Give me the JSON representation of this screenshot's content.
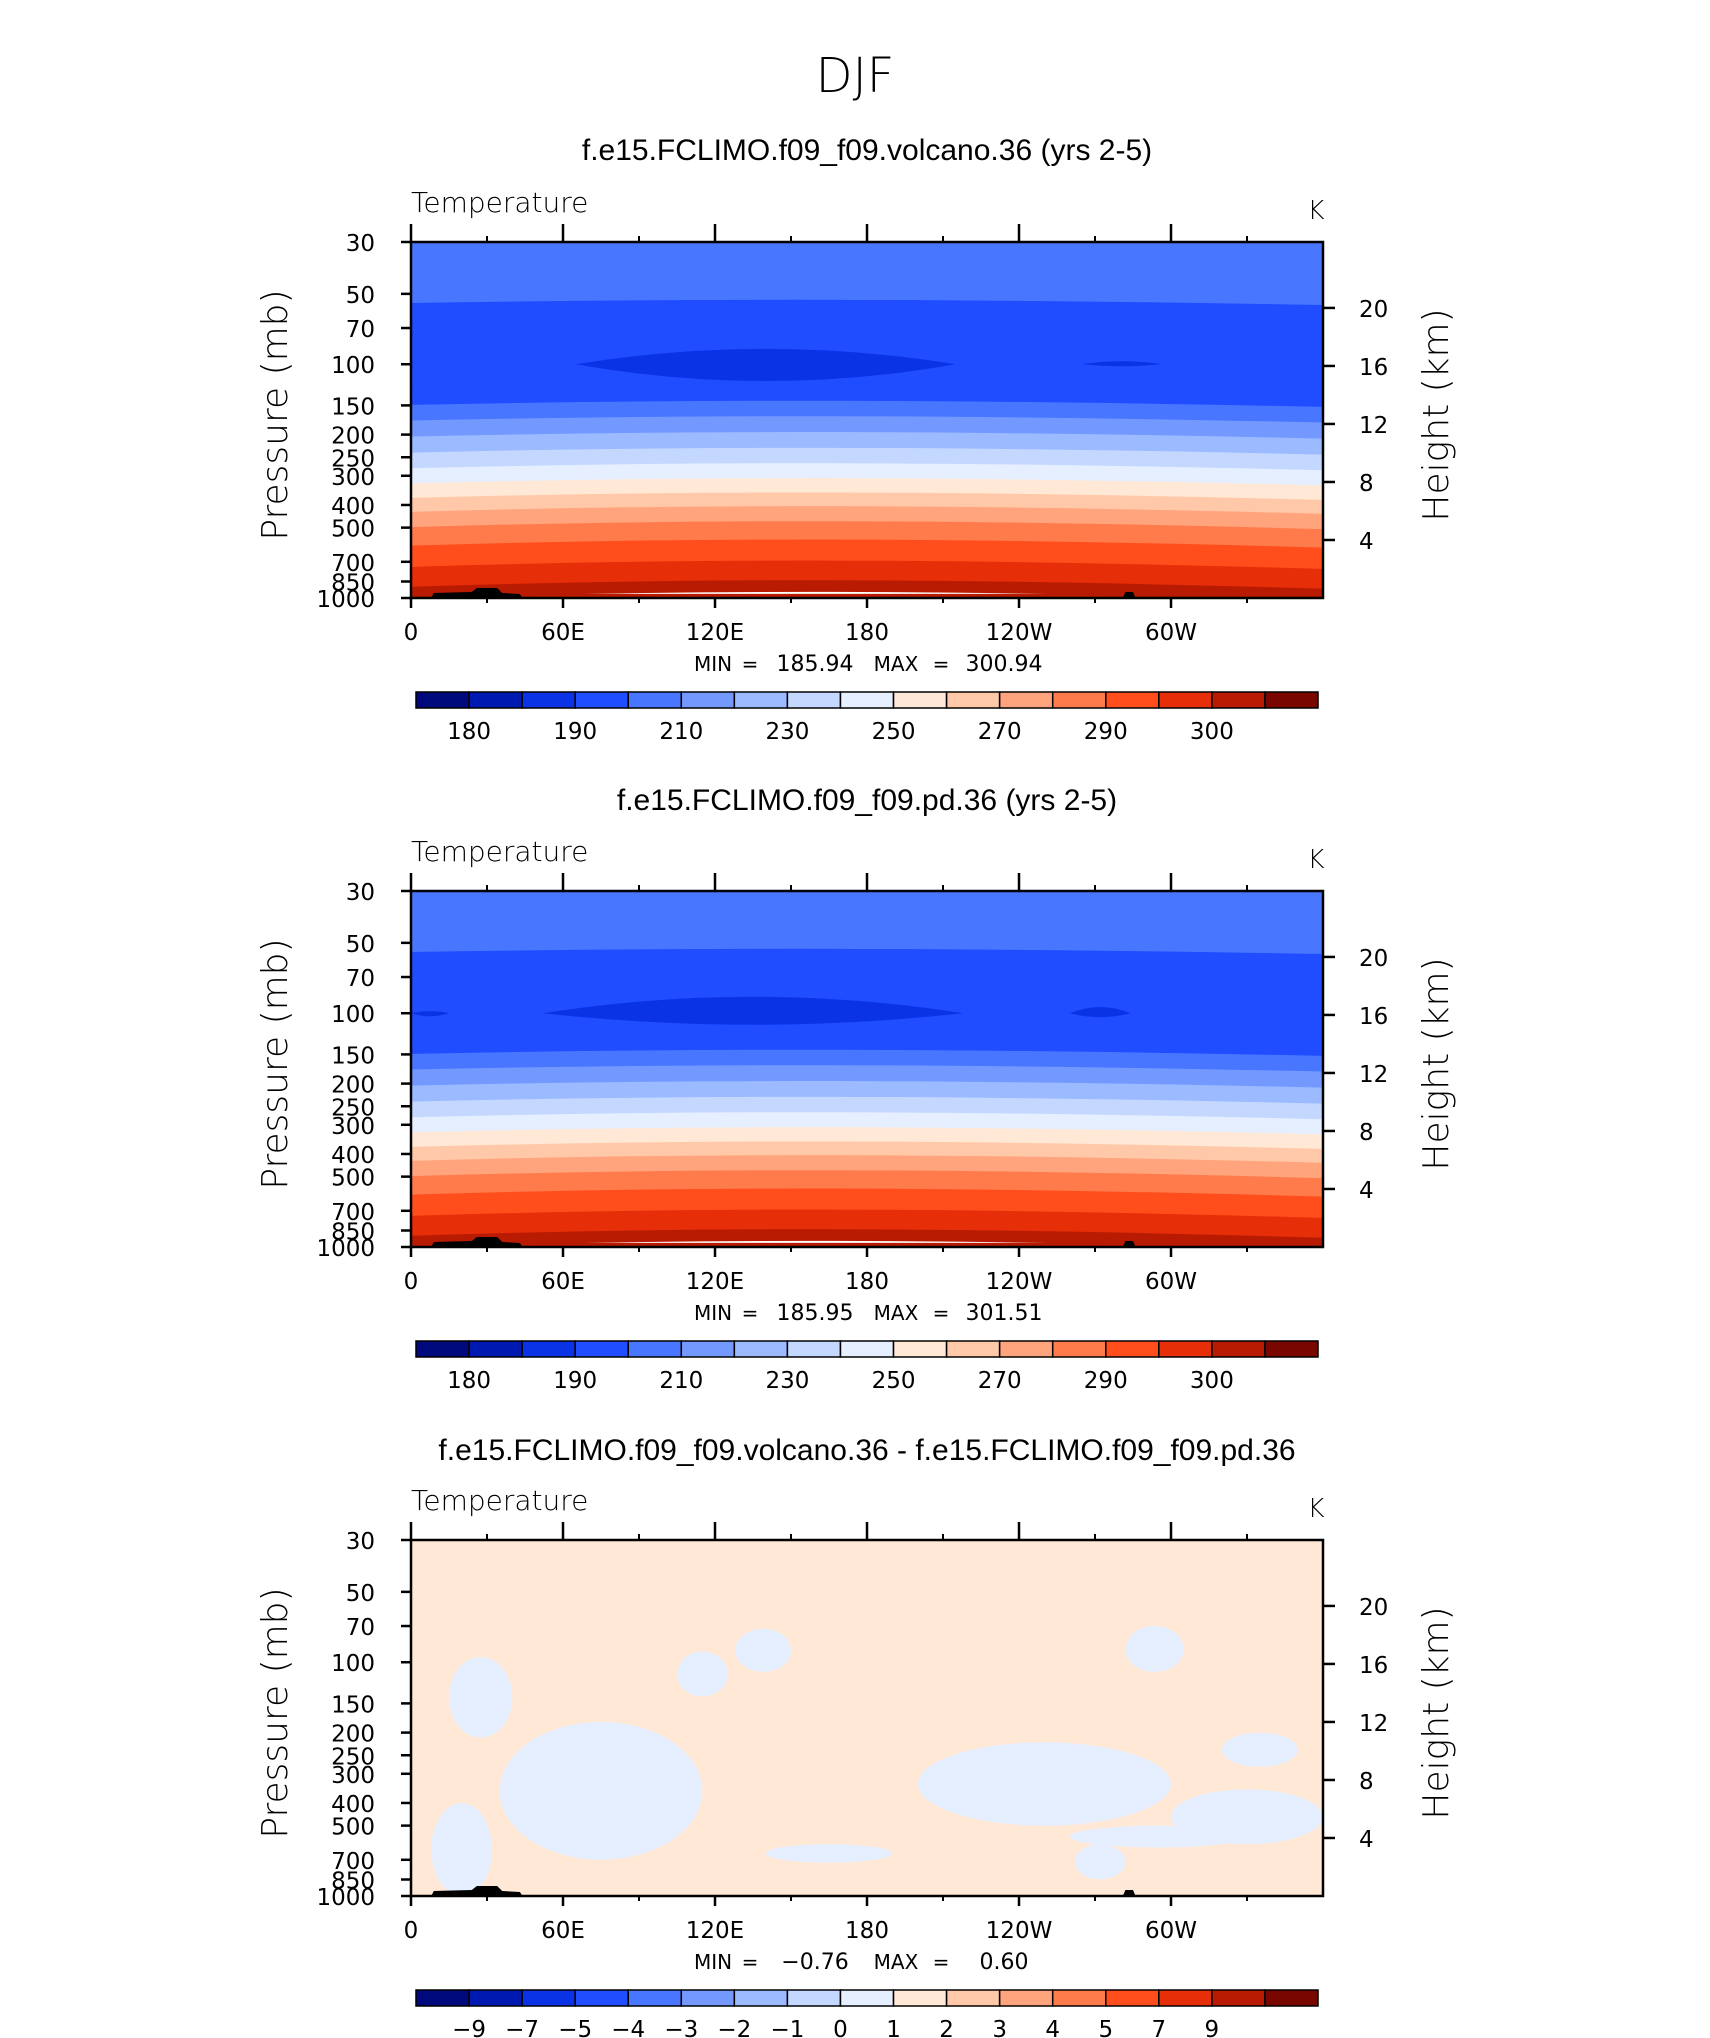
{
  "page_title": "DJF",
  "chart_data": [
    {
      "type": "heatmap",
      "title": "f.e15.FCLIMO.f09_f09.volcano.36 (yrs 2-5)",
      "variable_label": "Temperature",
      "units": "K",
      "ylabel": "Pressure (mb)",
      "y2label": "Height (km)",
      "x_ticks": [
        "0",
        "60E",
        "120E",
        "180",
        "120W",
        "60W"
      ],
      "y_ticks": [
        "30",
        "50",
        "70",
        "100",
        "150",
        "200",
        "250",
        "300",
        "400",
        "500",
        "700",
        "850",
        "1000"
      ],
      "y2_ticks": [
        "20",
        "16",
        "12",
        "8",
        "4"
      ],
      "stats": {
        "min_label": "MIN",
        "min": "185.94",
        "max_label": "MAX",
        "max": "300.94"
      },
      "colorbar_labels": [
        "180",
        "190",
        "210",
        "230",
        "250",
        "270",
        "290",
        "300"
      ],
      "colorbar_colors": [
        "#000a7c",
        "#0019b0",
        "#0b33e6",
        "#1f4dff",
        "#4876ff",
        "#7399ff",
        "#9cbaff",
        "#c4d8ff",
        "#e6efff",
        "#ffe8d6",
        "#ffc9a9",
        "#ffa47c",
        "#ff7b4c",
        "#ff4e1c",
        "#e62e08",
        "#b81b02",
        "#7a0600"
      ],
      "layers": [
        {
          "p": 30,
          "level": 4
        },
        {
          "p": 40,
          "level": 4
        },
        {
          "p": 55,
          "level": 3
        },
        {
          "p": 75,
          "level": 3
        },
        {
          "p": 100,
          "level": 3
        },
        {
          "p": 125,
          "level": 3
        },
        {
          "p": 150,
          "level": 4
        },
        {
          "p": 175,
          "level": 5
        },
        {
          "p": 205,
          "level": 6
        },
        {
          "p": 240,
          "level": 7
        },
        {
          "p": 280,
          "level": 8
        },
        {
          "p": 325,
          "level": 9
        },
        {
          "p": 375,
          "level": 10
        },
        {
          "p": 430,
          "level": 11
        },
        {
          "p": 500,
          "level": 12
        },
        {
          "p": 600,
          "level": 13
        },
        {
          "p": 740,
          "level": 14
        },
        {
          "p": 900,
          "level": 15
        },
        {
          "p": 1000,
          "level": 15
        }
      ],
      "features": [
        {
          "kind": "min_lens",
          "level": 2,
          "lon": [
            65,
            215
          ],
          "p_peak": 86,
          "p_bottom": 118
        },
        {
          "kind": "min_lens",
          "level": 2,
          "lon": [
            265,
            296
          ],
          "p_peak": 97,
          "p_bottom": 102
        }
      ]
    },
    {
      "type": "heatmap",
      "title": "f.e15.FCLIMO.f09_f09.pd.36 (yrs 2-5)",
      "variable_label": "Temperature",
      "units": "K",
      "ylabel": "Pressure (mb)",
      "y2label": "Height (km)",
      "x_ticks": [
        "0",
        "60E",
        "120E",
        "180",
        "120W",
        "60W"
      ],
      "y_ticks": [
        "30",
        "50",
        "70",
        "100",
        "150",
        "200",
        "250",
        "300",
        "400",
        "500",
        "700",
        "850",
        "1000"
      ],
      "y2_ticks": [
        "20",
        "16",
        "12",
        "8",
        "4"
      ],
      "stats": {
        "min_label": "MIN",
        "min": "185.95",
        "max_label": "MAX",
        "max": "301.51"
      },
      "colorbar_labels": [
        "180",
        "190",
        "210",
        "230",
        "250",
        "270",
        "290",
        "300"
      ],
      "colorbar_colors": [
        "#000a7c",
        "#0019b0",
        "#0b33e6",
        "#1f4dff",
        "#4876ff",
        "#7399ff",
        "#9cbaff",
        "#c4d8ff",
        "#e6efff",
        "#ffe8d6",
        "#ffc9a9",
        "#ffa47c",
        "#ff7b4c",
        "#ff4e1c",
        "#e62e08",
        "#b81b02",
        "#7a0600"
      ],
      "layers": [
        {
          "p": 30,
          "level": 4
        },
        {
          "p": 40,
          "level": 4
        },
        {
          "p": 55,
          "level": 3
        },
        {
          "p": 75,
          "level": 3
        },
        {
          "p": 100,
          "level": 3
        },
        {
          "p": 125,
          "level": 3
        },
        {
          "p": 150,
          "level": 4
        },
        {
          "p": 175,
          "level": 5
        },
        {
          "p": 205,
          "level": 6
        },
        {
          "p": 240,
          "level": 7
        },
        {
          "p": 280,
          "level": 8
        },
        {
          "p": 325,
          "level": 9
        },
        {
          "p": 375,
          "level": 10
        },
        {
          "p": 430,
          "level": 11
        },
        {
          "p": 500,
          "level": 12
        },
        {
          "p": 600,
          "level": 13
        },
        {
          "p": 740,
          "level": 14
        },
        {
          "p": 900,
          "level": 15
        },
        {
          "p": 1000,
          "level": 15
        }
      ],
      "features": [
        {
          "kind": "min_lens",
          "level": 2,
          "lon": [
            52,
            218
          ],
          "p_peak": 85,
          "p_bottom": 112
        },
        {
          "kind": "min_lens",
          "level": 2,
          "lon": [
            260,
            284
          ],
          "p_peak": 94,
          "p_bottom": 104
        },
        {
          "kind": "min_lens",
          "level": 2,
          "lon": [
            0,
            15
          ],
          "p_peak": 98,
          "p_bottom": 103
        }
      ]
    },
    {
      "type": "heatmap",
      "title": "f.e15.FCLIMO.f09_f09.volcano.36 - f.e15.FCLIMO.f09_f09.pd.36",
      "variable_label": "Temperature",
      "units": "K",
      "ylabel": "Pressure (mb)",
      "y2label": "Height (km)",
      "x_ticks": [
        "0",
        "60E",
        "120E",
        "180",
        "120W",
        "60W"
      ],
      "y_ticks": [
        "30",
        "50",
        "70",
        "100",
        "150",
        "200",
        "250",
        "300",
        "400",
        "500",
        "700",
        "850",
        "1000"
      ],
      "y2_ticks": [
        "20",
        "16",
        "12",
        "8",
        "4"
      ],
      "stats": {
        "min_label": "MIN",
        "min": "−0.76",
        "max_label": "MAX",
        "max": "0.60"
      },
      "colorbar_labels": [
        "−9",
        "−7",
        "−5",
        "−4",
        "−3",
        "−2",
        "−1",
        "0",
        "1",
        "2",
        "3",
        "4",
        "5",
        "7",
        "9"
      ],
      "colorbar_colors": [
        "#000a7c",
        "#0019b0",
        "#0b33e6",
        "#1f4dff",
        "#4876ff",
        "#7399ff",
        "#9cbaff",
        "#c4d8ff",
        "#e6efff",
        "#ffe8d6",
        "#ffc9a9",
        "#ffa47c",
        "#ff7b4c",
        "#ff4e1c",
        "#e62e08",
        "#b81b02",
        "#7a0600"
      ],
      "background_level": 9,
      "patches_level": 8,
      "patches": [
        {
          "lon": [
            8,
            32
          ],
          "p": [
            400,
            1000
          ]
        },
        {
          "lon": [
            15,
            40
          ],
          "p": [
            95,
            210
          ]
        },
        {
          "lon": [
            35,
            115
          ],
          "p": [
            180,
            700
          ]
        },
        {
          "lon": [
            55,
            90
          ],
          "p": [
            300,
            500
          ]
        },
        {
          "lon": [
            128,
            150
          ],
          "p": [
            72,
            110
          ]
        },
        {
          "lon": [
            105,
            125
          ],
          "p": [
            90,
            140
          ]
        },
        {
          "lon": [
            200,
            300
          ],
          "p": [
            220,
            500
          ]
        },
        {
          "lon": [
            262,
            282
          ],
          "p": [
            600,
            850
          ]
        },
        {
          "lon": [
            282,
            305
          ],
          "p": [
            70,
            110
          ]
        },
        {
          "lon": [
            300,
            360
          ],
          "p": [
            350,
            600
          ]
        },
        {
          "lon": [
            320,
            350
          ],
          "p": [
            200,
            280
          ]
        },
        {
          "lon": [
            260,
            330
          ],
          "p": [
            500,
            620
          ]
        },
        {
          "lon": [
            140,
            190
          ],
          "p": [
            600,
            720
          ]
        }
      ]
    }
  ]
}
